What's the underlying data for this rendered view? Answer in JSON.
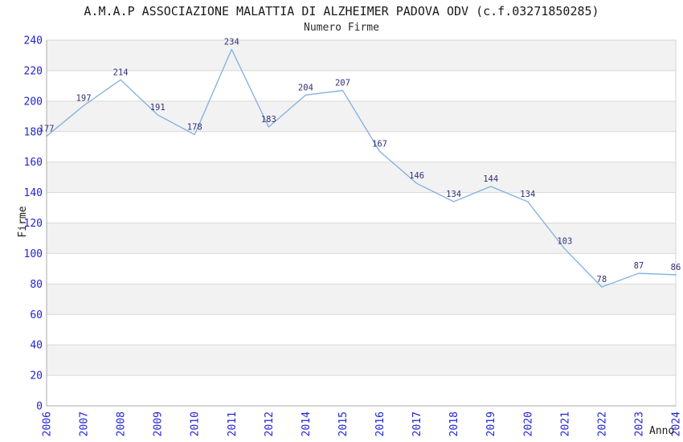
{
  "header": {
    "title": "A.M.A.P ASSOCIAZIONE MALATTIA DI ALZHEIMER PADOVA ODV (c.f.03271850285)",
    "subtitle": "Numero Firme"
  },
  "chart_data": {
    "type": "line",
    "title": "Numero Firme",
    "categories": [
      "2006",
      "2007",
      "2008",
      "2009",
      "2010",
      "2011",
      "2012",
      "2014",
      "2015",
      "2016",
      "2017",
      "2018",
      "2019",
      "2020",
      "2021",
      "2022",
      "2023",
      "2024"
    ],
    "values": [
      177,
      197,
      214,
      191,
      178,
      234,
      183,
      204,
      207,
      167,
      146,
      134,
      144,
      134,
      103,
      78,
      87,
      86
    ],
    "xlabel": "Anno",
    "ylabel": "Firme",
    "ylim": [
      0,
      240
    ],
    "ytick_step": 20,
    "grid": true,
    "legend": "none",
    "band_pattern": "alternating horizontal bands, gray band directly under top (220-240), white at bottom (0-20)",
    "colors": {
      "line": "#7fafe0",
      "tick_label": "#2323d7",
      "data_label": "#30307a",
      "band_gray": "#f2f2f2",
      "band_white": "#ffffff",
      "gridline": "#d9d9d9",
      "axis_line": "#ababab",
      "plot_border": "#d3d3d3",
      "title_text": "#1a1a1a"
    }
  }
}
